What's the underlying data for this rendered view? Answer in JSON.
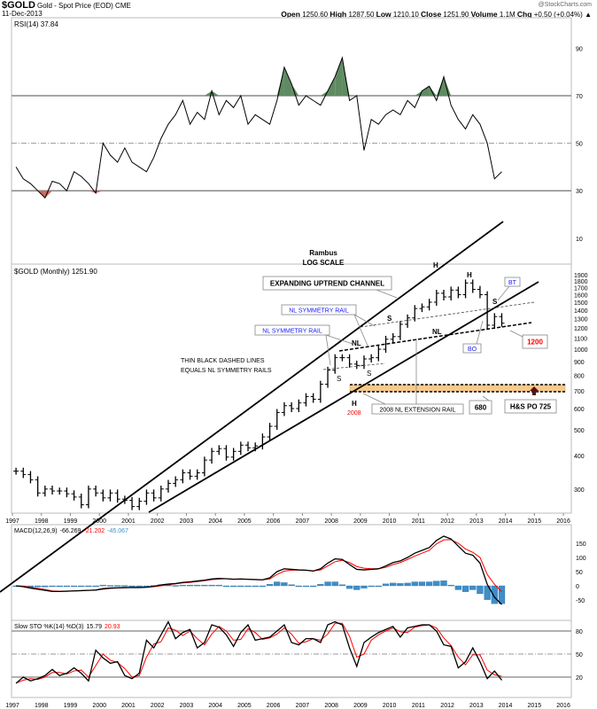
{
  "header": {
    "symbol": "$GOLD",
    "name": "Gold - Spot Price (EOD)",
    "exchange": "CME",
    "watermark": "@StockCharts.com",
    "date": "11-Dec-2013",
    "open_label": "Open",
    "open": "1250.60",
    "high_label": "High",
    "high": "1287.50",
    "low_label": "Low",
    "low": "1210.10",
    "close_label": "Close",
    "close": "1251.90",
    "volume_label": "Volume",
    "volume": "1.1M",
    "chg_label": "Chg",
    "chg": "+0.50 (+0.04%)",
    "chg_icon": "up-triangle-icon"
  },
  "colors": {
    "signal": "#ff0000",
    "histogram": "#3d8ec9",
    "rsi_overbought": "#5f8a62",
    "rsi_oversold": "#c9685a",
    "band": "#f7c98a",
    "blue_text": "#1a1aff",
    "red_text": "#ff0000"
  },
  "chart_data": [
    {
      "type": "line",
      "title": "RSI(14) 37.84",
      "ylim": [
        0,
        100
      ],
      "ticks": [
        "90",
        "70",
        "50",
        "30",
        "10"
      ],
      "levels": [
        70,
        50,
        30
      ],
      "grid": true,
      "x": [
        "1997Q1",
        "1997Q2",
        "1997Q3",
        "1997Q4",
        "1998Q1",
        "1998Q2",
        "1998Q3",
        "1998Q4",
        "1999Q1",
        "1999Q2",
        "1999Q3",
        "1999Q4",
        "2000Q1",
        "2000Q2",
        "2000Q3",
        "2000Q4",
        "2001Q1",
        "2001Q2",
        "2001Q3",
        "2001Q4",
        "2002Q1",
        "2002Q2",
        "2002Q3",
        "2002Q4",
        "2003Q1",
        "2003Q2",
        "2003Q3",
        "2003Q4",
        "2004Q1",
        "2004Q2",
        "2004Q3",
        "2004Q4",
        "2005Q1",
        "2005Q2",
        "2005Q3",
        "2005Q4",
        "2006Q1",
        "2006Q2",
        "2006Q3",
        "2006Q4",
        "2007Q1",
        "2007Q2",
        "2007Q3",
        "2007Q4",
        "2008Q1",
        "2008Q2",
        "2008Q3",
        "2008Q4",
        "2009Q1",
        "2009Q2",
        "2009Q3",
        "2009Q4",
        "2010Q1",
        "2010Q2",
        "2010Q3",
        "2010Q4",
        "2011Q1",
        "2011Q2",
        "2011Q3",
        "2011Q4",
        "2012Q1",
        "2012Q2",
        "2012Q3",
        "2012Q4",
        "2013Q1",
        "2013Q2",
        "2013Q3",
        "2013Q4"
      ],
      "values": [
        40,
        35,
        33,
        30,
        27,
        34,
        33,
        30,
        38,
        36,
        33,
        29,
        50,
        45,
        42,
        48,
        42,
        40,
        38,
        44,
        52,
        58,
        62,
        68,
        58,
        63,
        60,
        72,
        62,
        68,
        65,
        70,
        58,
        62,
        60,
        58,
        68,
        82,
        75,
        66,
        70,
        68,
        66,
        72,
        78,
        86,
        68,
        70,
        47,
        60,
        58,
        62,
        64,
        62,
        68,
        65,
        72,
        74,
        68,
        78,
        66,
        60,
        56,
        62,
        58,
        50,
        35,
        38
      ]
    },
    {
      "type": "bar",
      "title": "$GOLD (Monthly) 1251.90",
      "scale": "log",
      "ylim": [
        250,
        2000
      ],
      "ticks": [
        "1900",
        "1800",
        "1700",
        "1600",
        "1500",
        "1400",
        "1300",
        "1200",
        "1100",
        "1000",
        "900",
        "800",
        "700",
        "600",
        "500",
        "400",
        "300"
      ],
      "xticks": [
        "1997",
        "1998",
        "1999",
        "2000",
        "2001",
        "2002",
        "2003",
        "2004",
        "2005",
        "2006",
        "2007",
        "2008",
        "2009",
        "2010",
        "2011",
        "2012",
        "2013",
        "2014",
        "2015",
        "2016"
      ],
      "close": [
        350,
        340,
        325,
        290,
        300,
        295,
        295,
        288,
        280,
        262,
        300,
        290,
        278,
        290,
        275,
        272,
        258,
        270,
        290,
        278,
        300,
        315,
        325,
        345,
        335,
        345,
        385,
        415,
        425,
        395,
        415,
        438,
        428,
        435,
        470,
        515,
        580,
        615,
        600,
        630,
        665,
        650,
        740,
        835,
        930,
        930,
        880,
        870,
        920,
        930,
        1000,
        1090,
        1115,
        1240,
        1310,
        1420,
        1440,
        1500,
        1620,
        1570,
        1665,
        1600,
        1770,
        1675,
        1600,
        1230,
        1325,
        1252
      ],
      "annotations": {
        "author": "Rambus",
        "scale_note": "LOG SCALE",
        "channel": "EXPANDING UPTREND CHANNEL",
        "nl_rail_1": "NL SYMMETRY RAIL",
        "nl_rail_2": "NL SYMMETRY RAIL",
        "note_1": "THIN BLACK DASHED LINES",
        "note_2": "EQUALS NL SYMMETRY RAILS",
        "ext_rail": "2008 NL EXTENSION RAIL",
        "level_680": "680",
        "target": "H&S PO 725",
        "level_1200": "1200",
        "bt": "BT",
        "bo": "BO",
        "h1": "H",
        "h2": "H",
        "s1": "S",
        "s2": "S",
        "nl1": "NL",
        "nl2": "NL",
        "s3": "S",
        "s4": "S",
        "h3": "H",
        "year_2008": "2008"
      }
    },
    {
      "type": "line",
      "title": "MACD(12,26,9)",
      "macd_value": "-66.269",
      "signal_value": "-21.202",
      "hist_value": "-45.067",
      "ticks": [
        "150",
        "100",
        "50",
        "0",
        "-50"
      ],
      "macd": [
        0,
        -3,
        -8,
        -12,
        -16,
        -20,
        -20,
        -19,
        -18,
        -17,
        -16,
        -15,
        -10,
        -8,
        -7,
        -6,
        -6,
        -6,
        -5,
        -2,
        3,
        6,
        8,
        12,
        14,
        17,
        20,
        24,
        26,
        25,
        23,
        24,
        23,
        22,
        21,
        28,
        50,
        60,
        58,
        56,
        55,
        52,
        60,
        80,
        95,
        93,
        75,
        58,
        56,
        58,
        60,
        70,
        82,
        88,
        100,
        115,
        125,
        135,
        160,
        175,
        165,
        140,
        115,
        108,
        80,
        5,
        -40,
        -66
      ],
      "signal": [
        0,
        -1,
        -5,
        -9,
        -13,
        -18,
        -19,
        -19,
        -18,
        -17,
        -16,
        -15,
        -12,
        -9,
        -8,
        -7,
        -6,
        -6,
        -5,
        -3,
        0,
        4,
        7,
        10,
        12,
        15,
        18,
        22,
        24,
        25,
        24,
        24,
        23,
        22,
        21,
        24,
        40,
        52,
        55,
        56,
        55,
        53,
        56,
        70,
        85,
        90,
        82,
        68,
        62,
        60,
        60,
        65,
        75,
        82,
        93,
        105,
        115,
        125,
        148,
        162,
        163,
        150,
        130,
        118,
        100,
        40,
        5,
        -21
      ],
      "histogram": [
        0,
        -2,
        -3,
        -3,
        -3,
        -2,
        -1,
        0,
        0,
        0,
        0,
        0,
        2,
        1,
        1,
        1,
        0,
        0,
        0,
        1,
        3,
        2,
        1,
        2,
        2,
        2,
        2,
        2,
        2,
        0,
        -1,
        0,
        0,
        0,
        0,
        4,
        10,
        8,
        3,
        0,
        0,
        -1,
        4,
        10,
        10,
        3,
        -7,
        -10,
        -6,
        -2,
        0,
        5,
        7,
        6,
        7,
        10,
        10,
        10,
        12,
        13,
        2,
        -10,
        -15,
        -10,
        -20,
        -35,
        -45,
        -45
      ]
    },
    {
      "type": "line",
      "title": "Slow STO %K(14) %D(3)",
      "k_value": "15.79",
      "d_value": "20.93",
      "ticks": [
        "80",
        "50",
        "20"
      ],
      "levels": [
        80,
        50,
        20
      ],
      "k": [
        12,
        20,
        15,
        18,
        22,
        30,
        22,
        25,
        32,
        25,
        15,
        55,
        45,
        38,
        40,
        22,
        18,
        25,
        68,
        58,
        75,
        92,
        70,
        78,
        82,
        58,
        65,
        88,
        85,
        75,
        60,
        78,
        88,
        68,
        70,
        72,
        80,
        88,
        65,
        62,
        70,
        70,
        65,
        88,
        92,
        88,
        58,
        34,
        65,
        72,
        78,
        82,
        86,
        72,
        84,
        86,
        88,
        88,
        80,
        62,
        60,
        32,
        40,
        58,
        40,
        18,
        28,
        16
      ],
      "d": [
        12,
        16,
        18,
        17,
        20,
        26,
        26,
        24,
        28,
        29,
        20,
        35,
        50,
        42,
        39,
        31,
        20,
        22,
        46,
        63,
        66,
        84,
        81,
        74,
        80,
        70,
        62,
        76,
        86,
        80,
        68,
        69,
        83,
        78,
        69,
        71,
        76,
        84,
        76,
        64,
        66,
        70,
        68,
        76,
        90,
        90,
        73,
        46,
        50,
        68,
        75,
        80,
        84,
        79,
        78,
        85,
        87,
        88,
        84,
        71,
        61,
        46,
        36,
        49,
        49,
        29,
        23,
        21
      ]
    }
  ]
}
